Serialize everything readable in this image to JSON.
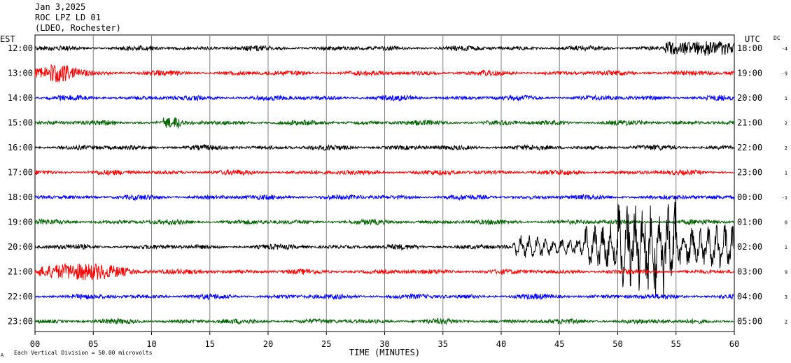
{
  "header": {
    "date": "Jan 3,2025",
    "station": "ROC LPZ LD 01",
    "network": "(LDEO, Rochester)"
  },
  "chart_data": {
    "type": "line",
    "left_axis_title": "EST",
    "right_axis_title": "UTC",
    "dc_title": "DC",
    "rows": [
      {
        "est": "12:00",
        "utc": "18:00",
        "dc": "-4",
        "color": "#000000"
      },
      {
        "est": "13:00",
        "utc": "19:00",
        "dc": "-9",
        "color": "#ff0000"
      },
      {
        "est": "14:00",
        "utc": "20:00",
        "dc": "1",
        "color": "#0000ff"
      },
      {
        "est": "15:00",
        "utc": "21:00",
        "dc": "2",
        "color": "#006400"
      },
      {
        "est": "16:00",
        "utc": "22:00",
        "dc": "2",
        "color": "#000000"
      },
      {
        "est": "17:00",
        "utc": "23:00",
        "dc": "1",
        "color": "#ff0000"
      },
      {
        "est": "18:00",
        "utc": "00:00",
        "dc": "-1",
        "color": "#0000ff"
      },
      {
        "est": "19:00",
        "utc": "01:00",
        "dc": "0",
        "color": "#006400"
      },
      {
        "est": "20:00",
        "utc": "02:00",
        "dc": "1",
        "color": "#000000"
      },
      {
        "est": "21:00",
        "utc": "03:00",
        "dc": "9",
        "color": "#ff0000"
      },
      {
        "est": "22:00",
        "utc": "04:00",
        "dc": "3",
        "color": "#0000ff"
      },
      {
        "est": "23:00",
        "utc": "05:00",
        "dc": "2",
        "color": "#006400"
      }
    ],
    "x_ticks": [
      "00",
      "05",
      "10",
      "15",
      "20",
      "25",
      "30",
      "35",
      "40",
      "45",
      "50",
      "55",
      "60"
    ],
    "xlabel": "TIME (MINUTES)",
    "xlim": [
      0,
      60
    ],
    "grid": true
  },
  "footer": {
    "mark": "A",
    "scale_text": "Each Vertical Division =   50.00 microvolts"
  }
}
